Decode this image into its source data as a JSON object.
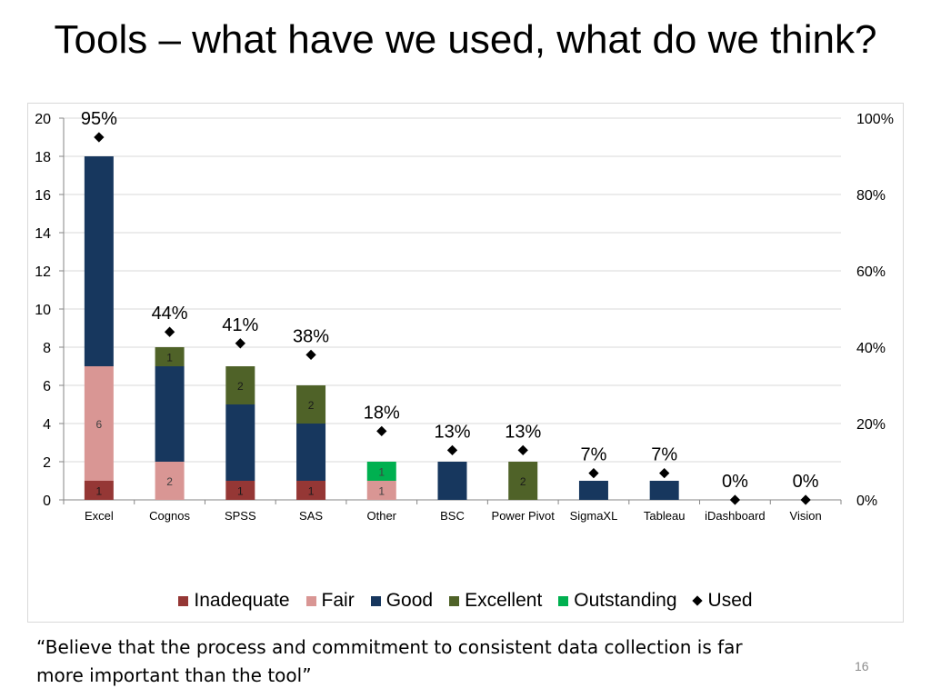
{
  "slide": {
    "title": "Tools – what have we used, what do we think?",
    "quote": "“Believe that the process and commitment to consistent data collection is far more important than the tool”",
    "page_number": "16"
  },
  "legend": {
    "items": [
      {
        "label": "Inadequate",
        "color": "#953735",
        "marker": "square"
      },
      {
        "label": "Fair",
        "color": "#d99694",
        "marker": "square"
      },
      {
        "label": "Good",
        "color": "#17375e",
        "marker": "square"
      },
      {
        "label": "Excellent",
        "color": "#4f6228",
        "marker": "square"
      },
      {
        "label": "Outstanding",
        "color": "#00b050",
        "marker": "square"
      },
      {
        "label": "Used",
        "color": "#000000",
        "marker": "diamond"
      }
    ]
  },
  "chart_data": {
    "type": "bar",
    "stacked": true,
    "categories": [
      "Excel",
      "Cognos",
      "SPSS",
      "SAS",
      "Other",
      "BSC",
      "Power Pivot",
      "SigmaXL",
      "Tableau",
      "iDashboard",
      "Vision"
    ],
    "series": [
      {
        "name": "Inadequate",
        "color": "#953735",
        "values": [
          1,
          0,
          1,
          1,
          0,
          0,
          0,
          0,
          0,
          0,
          0
        ],
        "labels": [
          "1",
          "",
          "1",
          "1",
          "",
          "",
          "",
          "",
          "",
          "",
          ""
        ]
      },
      {
        "name": "Fair",
        "color": "#d99694",
        "values": [
          6,
          2,
          0,
          0,
          1,
          0,
          0,
          0,
          0,
          0,
          0
        ],
        "labels": [
          "6",
          "2",
          "",
          "",
          "1",
          "",
          "",
          "",
          "",
          "",
          ""
        ]
      },
      {
        "name": "Good",
        "color": "#17375e",
        "values": [
          11,
          5,
          4,
          3,
          0,
          2,
          0,
          1,
          1,
          0,
          0
        ],
        "labels": [
          "",
          "",
          "",
          "",
          "",
          "",
          "",
          "",
          "",
          "",
          ""
        ]
      },
      {
        "name": "Excellent",
        "color": "#4f6228",
        "values": [
          0,
          1,
          2,
          2,
          0,
          0,
          2,
          0,
          0,
          0,
          0
        ],
        "labels": [
          "",
          "1",
          "2",
          "2",
          "",
          "",
          "2",
          "",
          "",
          "",
          ""
        ]
      },
      {
        "name": "Outstanding",
        "color": "#00b050",
        "values": [
          0,
          0,
          0,
          0,
          1,
          0,
          0,
          0,
          0,
          0,
          0
        ],
        "labels": [
          "",
          "",
          "",
          "",
          "1",
          "",
          "",
          "",
          "",
          "",
          ""
        ]
      }
    ],
    "used": {
      "name": "Used",
      "axis": "secondary",
      "values": [
        95,
        44,
        41,
        38,
        18,
        13,
        13,
        7,
        7,
        0,
        0
      ],
      "labels": [
        "95%",
        "44%",
        "41%",
        "38%",
        "18%",
        "13%",
        "13%",
        "7%",
        "7%",
        "0%",
        "0%"
      ]
    },
    "y_primary": {
      "min": 0,
      "max": 20,
      "ticks": [
        "0",
        "2",
        "4",
        "6",
        "8",
        "10",
        "12",
        "14",
        "16",
        "18",
        "20"
      ]
    },
    "y_secondary": {
      "min": 0,
      "max": 100,
      "ticks": [
        "0%",
        "20%",
        "40%",
        "60%",
        "80%",
        "100%"
      ]
    },
    "grid": true,
    "legend_position": "bottom"
  }
}
